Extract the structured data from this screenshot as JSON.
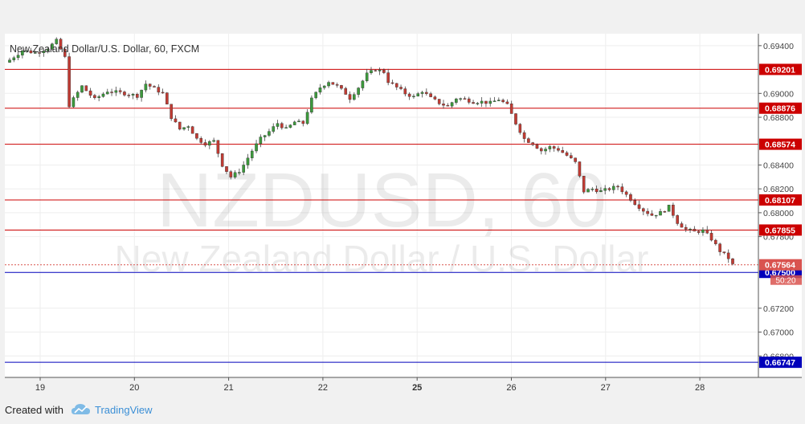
{
  "chart_data": {
    "type": "candlestick",
    "title": "New Zealand Dollar/U.S. Dollar, 60, FXCM",
    "watermark_symbol": "NZDUSD, 60",
    "watermark_name": "New Zealand Dollar / U.S. Dollar",
    "x_ticks": [
      "19",
      "20",
      "21",
      "22",
      "25",
      "26",
      "27",
      "28"
    ],
    "ylim": [
      0.6662,
      0.695
    ],
    "y_ticks": [
      "0.69400",
      "0.69000",
      "0.68800",
      "0.68400",
      "0.68200",
      "0.68000",
      "0.67800",
      "0.67200",
      "0.67000",
      "0.66800"
    ],
    "horizontal_lines": [
      {
        "value": 0.69201,
        "label": "0.69201",
        "color": "#cc0000"
      },
      {
        "value": 0.68876,
        "label": "0.68876",
        "color": "#cc0000"
      },
      {
        "value": 0.68574,
        "label": "0.68574",
        "color": "#cc0000"
      },
      {
        "value": 0.68107,
        "label": "0.68107",
        "color": "#cc0000"
      },
      {
        "value": 0.67855,
        "label": "0.67855",
        "color": "#cc0000"
      },
      {
        "value": 0.675,
        "label": "0.67500",
        "color": "#0000bb"
      },
      {
        "value": 0.66747,
        "label": "0.66747",
        "color": "#0000bb"
      }
    ],
    "last_price": {
      "value": 0.67564,
      "label": "0.67564",
      "countdown": "50:20",
      "color": "#d9534f"
    },
    "close_path": [
      [
        0,
        0.6928
      ],
      [
        3,
        0.6936
      ],
      [
        6,
        0.6934
      ],
      [
        9,
        0.6938
      ],
      [
        11,
        0.6944
      ],
      [
        13,
        0.693
      ],
      [
        14,
        0.689
      ],
      [
        17,
        0.6906
      ],
      [
        20,
        0.6895
      ],
      [
        23,
        0.6902
      ],
      [
        27,
        0.69
      ],
      [
        30,
        0.6898
      ],
      [
        32,
        0.6908
      ],
      [
        34,
        0.6904
      ],
      [
        36,
        0.69
      ],
      [
        38,
        0.688
      ],
      [
        40,
        0.687
      ],
      [
        42,
        0.6873
      ],
      [
        44,
        0.6862
      ],
      [
        46,
        0.6858
      ],
      [
        48,
        0.686
      ],
      [
        50,
        0.684
      ],
      [
        52,
        0.683
      ],
      [
        54,
        0.6835
      ],
      [
        55,
        0.684
      ],
      [
        57,
        0.6852
      ],
      [
        59,
        0.6862
      ],
      [
        61,
        0.6868
      ],
      [
        63,
        0.6875
      ],
      [
        65,
        0.687
      ],
      [
        67,
        0.6876
      ],
      [
        69,
        0.6875
      ],
      [
        71,
        0.6895
      ],
      [
        73,
        0.6905
      ],
      [
        75,
        0.691
      ],
      [
        77,
        0.6906
      ],
      [
        79,
        0.69
      ],
      [
        80,
        0.6896
      ],
      [
        82,
        0.6905
      ],
      [
        84,
        0.6916
      ],
      [
        86,
        0.692
      ],
      [
        88,
        0.6918
      ],
      [
        89,
        0.691
      ],
      [
        91,
        0.6905
      ],
      [
        93,
        0.69
      ],
      [
        95,
        0.6897
      ],
      [
        97,
        0.6902
      ],
      [
        99,
        0.6896
      ],
      [
        101,
        0.6892
      ],
      [
        103,
        0.6889
      ],
      [
        105,
        0.6896
      ],
      [
        107,
        0.6895
      ],
      [
        109,
        0.6893
      ],
      [
        111,
        0.6893
      ],
      [
        113,
        0.6892
      ],
      [
        115,
        0.6895
      ],
      [
        117,
        0.689
      ],
      [
        119,
        0.6875
      ],
      [
        121,
        0.6862
      ],
      [
        123,
        0.6858
      ],
      [
        125,
        0.6852
      ],
      [
        127,
        0.6855
      ],
      [
        129,
        0.6853
      ],
      [
        131,
        0.6848
      ],
      [
        133,
        0.6842
      ],
      [
        135,
        0.6818
      ],
      [
        137,
        0.682
      ],
      [
        139,
        0.6818
      ],
      [
        141,
        0.682
      ],
      [
        143,
        0.6822
      ],
      [
        145,
        0.6815
      ],
      [
        147,
        0.6808
      ],
      [
        149,
        0.6802
      ],
      [
        151,
        0.6798
      ],
      [
        153,
        0.68
      ],
      [
        155,
        0.6805
      ],
      [
        157,
        0.6792
      ],
      [
        159,
        0.6786
      ],
      [
        161,
        0.6784
      ],
      [
        163,
        0.6785
      ],
      [
        165,
        0.6778
      ],
      [
        167,
        0.6768
      ],
      [
        169,
        0.6762
      ],
      [
        170,
        0.67564
      ]
    ]
  },
  "footer": {
    "created_with": "Created with",
    "brand": "TradingView"
  }
}
